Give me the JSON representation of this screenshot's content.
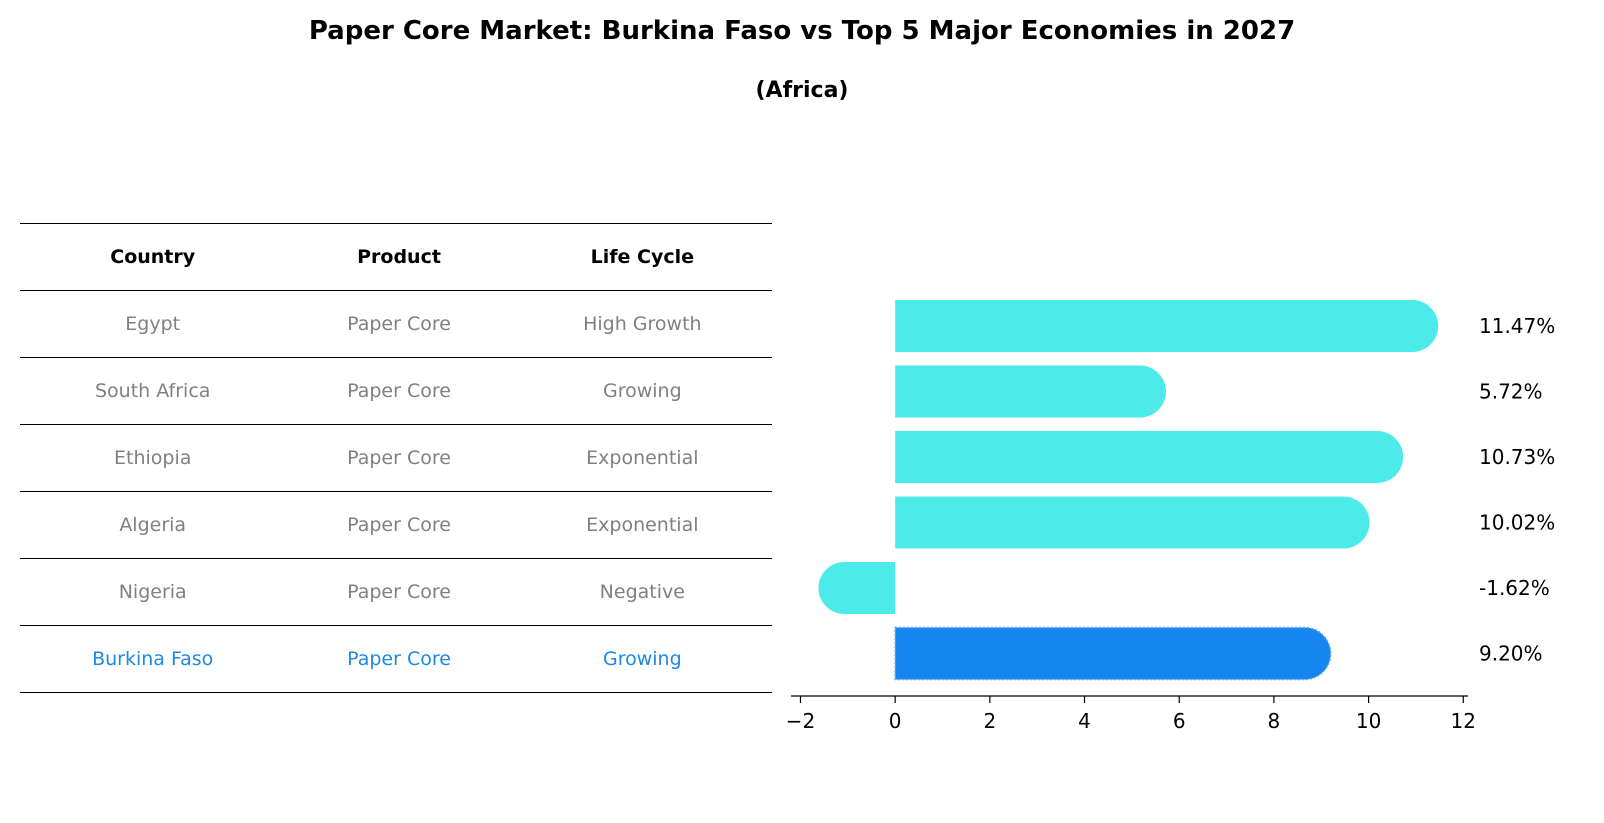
{
  "title": "Paper Core Market: Burkina Faso vs Top 5 Major Economies in 2027",
  "subtitle": "(Africa)",
  "table": {
    "headers": [
      "Country",
      "Product",
      "Life Cycle"
    ],
    "rows": [
      [
        "Egypt",
        "Paper Core",
        "High Growth"
      ],
      [
        "South Africa",
        "Paper Core",
        "Growing"
      ],
      [
        "Ethiopia",
        "Paper Core",
        "Exponential"
      ],
      [
        "Algeria",
        "Paper Core",
        "Exponential"
      ],
      [
        "Nigeria",
        "Paper Core",
        "Negative"
      ],
      [
        "Burkina Faso",
        "Paper Core",
        "Growing"
      ]
    ],
    "highlight_row": 5
  },
  "colors": {
    "bar": "#4deaea",
    "highlight_bar": "#1785f0",
    "highlight_text": "#1e88e5",
    "muted_text": "#808080"
  },
  "chart_data": {
    "type": "bar",
    "orientation": "horizontal",
    "categories": [
      "Egypt",
      "South Africa",
      "Ethiopia",
      "Algeria",
      "Nigeria",
      "Burkina Faso"
    ],
    "values": [
      11.47,
      5.72,
      10.73,
      10.02,
      -1.62,
      9.2
    ],
    "value_labels": [
      "11.47%",
      "5.72%",
      "10.73%",
      "10.02%",
      "-1.62%",
      "9.20%"
    ],
    "highlight_index": 5,
    "xlim": [
      -2.2,
      12.1
    ],
    "xticks": [
      -2,
      0,
      2,
      4,
      6,
      8,
      10,
      12
    ],
    "xtick_labels": [
      "−2",
      "0",
      "2",
      "4",
      "6",
      "8",
      "10",
      "12"
    ],
    "grid": false
  }
}
